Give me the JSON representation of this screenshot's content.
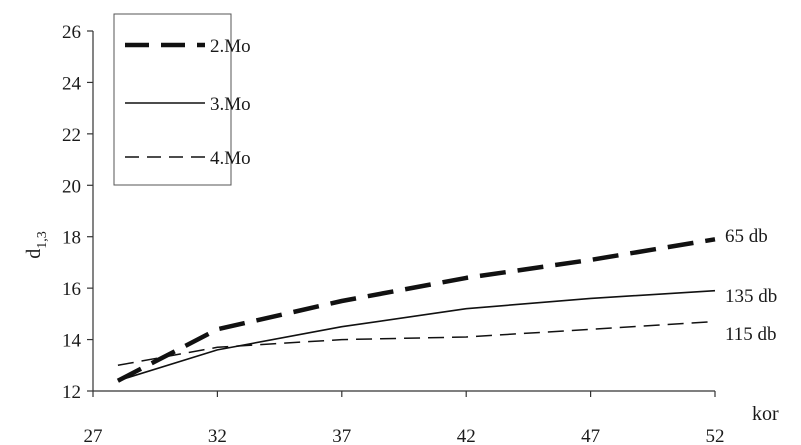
{
  "chart_data": {
    "type": "line",
    "xlabel": "kor",
    "ylabel": "d",
    "ylabel_subscript": "1,3",
    "xlim": [
      27,
      52
    ],
    "ylim": [
      12,
      26
    ],
    "xticks": [
      27,
      32,
      37,
      42,
      47,
      52
    ],
    "yticks": [
      12,
      14,
      16,
      18,
      20,
      22,
      24,
      26
    ],
    "grid": false,
    "legend_position": "top-left",
    "series": [
      {
        "name": "2.Mo",
        "style": "thick-dashed",
        "x": [
          28,
          32,
          37,
          42,
          47,
          52
        ],
        "values": [
          12.4,
          14.4,
          15.5,
          16.4,
          17.1,
          17.9
        ],
        "end_label": "65 db"
      },
      {
        "name": "3.Mo",
        "style": "solid",
        "x": [
          28,
          32,
          37,
          42,
          47,
          52
        ],
        "values": [
          12.4,
          13.6,
          14.5,
          15.2,
          15.6,
          15.9
        ],
        "end_label": "135 db"
      },
      {
        "name": "4.Mo",
        "style": "thin-dashed",
        "x": [
          28,
          32,
          37,
          42,
          47,
          52
        ],
        "values": [
          13.0,
          13.7,
          14.0,
          14.1,
          14.4,
          14.7
        ],
        "end_label": "115 db"
      }
    ]
  }
}
